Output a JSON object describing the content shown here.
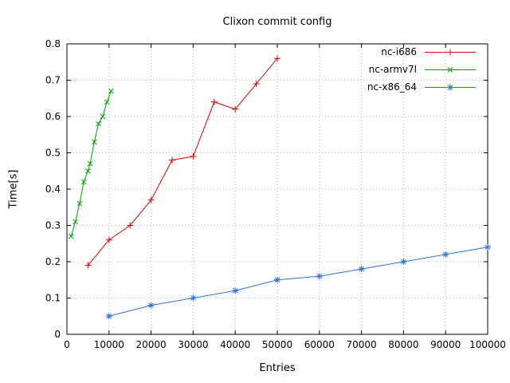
{
  "chart_data": {
    "type": "line",
    "title": "Clixon commit config",
    "xlabel": "Entries",
    "ylabel": "Time[s]",
    "xlim": [
      0,
      100000
    ],
    "ylim": [
      0,
      0.8
    ],
    "xticks": [
      0,
      10000,
      20000,
      30000,
      40000,
      50000,
      60000,
      70000,
      80000,
      90000,
      100000
    ],
    "yticks": [
      0,
      0.1,
      0.2,
      0.3,
      0.4,
      0.5,
      0.6,
      0.7,
      0.8
    ],
    "grid": true,
    "grid_color": "#b8b8b8",
    "legend_position": "top-right",
    "series": [
      {
        "name": "nc-i686",
        "color": "#e00000",
        "marker": "plus",
        "points": [
          [
            5000,
            0.19
          ],
          [
            10000,
            0.26
          ],
          [
            15000,
            0.3
          ],
          [
            20000,
            0.37
          ],
          [
            25000,
            0.48
          ],
          [
            30000,
            0.49
          ],
          [
            35000,
            0.64
          ],
          [
            40000,
            0.62
          ],
          [
            45000,
            0.69
          ],
          [
            50000,
            0.76
          ]
        ]
      },
      {
        "name": "nc-armv7l",
        "color": "#00a000",
        "marker": "cross",
        "points": [
          [
            1000,
            0.27
          ],
          [
            2000,
            0.31
          ],
          [
            3000,
            0.36
          ],
          [
            4000,
            0.42
          ],
          [
            5000,
            0.45
          ],
          [
            5500,
            0.47
          ],
          [
            6500,
            0.53
          ],
          [
            7500,
            0.58
          ],
          [
            8500,
            0.6
          ],
          [
            9500,
            0.64
          ],
          [
            10500,
            0.67
          ]
        ]
      },
      {
        "name": "nc-x86_64",
        "color": "#3070d0",
        "marker": "star",
        "points": [
          [
            10000,
            0.05
          ],
          [
            20000,
            0.08
          ],
          [
            30000,
            0.1
          ],
          [
            40000,
            0.12
          ],
          [
            50000,
            0.15
          ],
          [
            60000,
            0.16
          ],
          [
            70000,
            0.18
          ],
          [
            80000,
            0.2
          ],
          [
            90000,
            0.22
          ],
          [
            100000,
            0.24
          ]
        ]
      }
    ]
  }
}
